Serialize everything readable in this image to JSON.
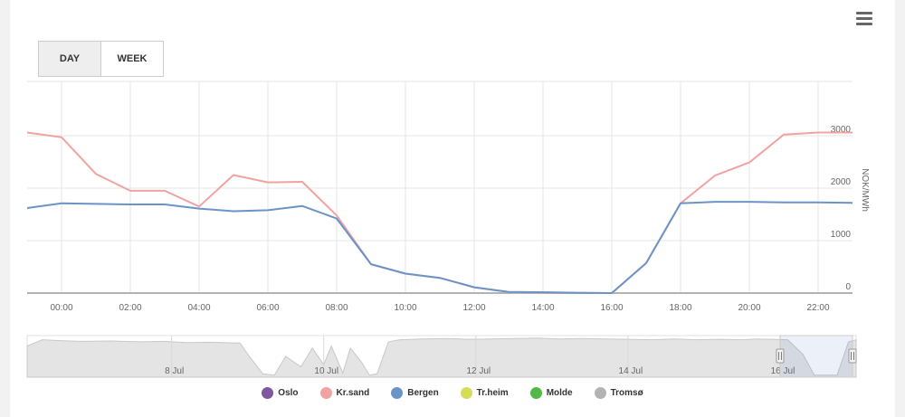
{
  "toolbar": {
    "range_buttons": [
      {
        "label": "DAY",
        "active": true
      },
      {
        "label": "WEEK",
        "active": false
      }
    ],
    "menu_icon": "hamburger-menu-icon"
  },
  "chart_data": {
    "type": "line",
    "title": "",
    "xlabel": "",
    "ylabel": "NOK/MWh",
    "x_ticks": [
      "00:00",
      "02:00",
      "04:00",
      "06:00",
      "08:00",
      "10:00",
      "12:00",
      "14:00",
      "16:00",
      "18:00",
      "20:00",
      "22:00"
    ],
    "x_range_hours": [
      -1,
      23
    ],
    "y_ticks": [
      0,
      1000,
      2000,
      3000
    ],
    "ylim": [
      0,
      3000
    ],
    "grid": true,
    "legend_position": "bottom-center",
    "x_hours": [
      -1,
      0,
      1,
      2,
      3,
      4,
      5,
      6,
      7,
      8,
      9,
      10,
      11,
      12,
      13,
      14,
      15,
      16,
      17,
      18,
      19,
      20,
      21,
      22,
      23
    ],
    "series": [
      {
        "name": "Oslo",
        "color": "#7e57a0",
        "values": [
          0,
          0,
          0,
          0,
          0,
          0,
          0,
          0,
          0,
          0,
          0,
          0,
          0,
          0,
          0,
          0,
          0,
          0,
          0,
          0,
          0,
          0,
          0,
          0,
          0
        ]
      },
      {
        "name": "Kr.sand",
        "color": "#f0a3a1",
        "values": [
          3060,
          2970,
          2270,
          1950,
          1950,
          1650,
          2250,
          2110,
          2120,
          1480,
          550,
          370,
          290,
          110,
          20,
          15,
          5,
          0,
          570,
          1710,
          2240,
          2490,
          3020,
          3060,
          3060
        ]
      },
      {
        "name": "Bergen",
        "color": "#6a94c8",
        "values": [
          1620,
          1710,
          1700,
          1690,
          1690,
          1610,
          1560,
          1580,
          1660,
          1420,
          550,
          370,
          290,
          110,
          20,
          15,
          5,
          0,
          570,
          1710,
          1740,
          1740,
          1730,
          1730,
          1720
        ]
      },
      {
        "name": "Tr.heim",
        "color": "#d4dc58",
        "values": [
          0,
          0,
          0,
          0,
          0,
          0,
          0,
          0,
          0,
          0,
          0,
          0,
          0,
          0,
          0,
          0,
          0,
          0,
          0,
          0,
          0,
          0,
          0,
          0,
          0
        ]
      },
      {
        "name": "Molde",
        "color": "#52b947",
        "values": [
          0,
          0,
          0,
          0,
          0,
          0,
          0,
          0,
          0,
          0,
          0,
          0,
          0,
          0,
          0,
          0,
          0,
          0,
          0,
          0,
          0,
          0,
          0,
          0,
          0
        ]
      },
      {
        "name": "Tromsø",
        "color": "#b3b3b3",
        "values": [
          0,
          0,
          0,
          0,
          0,
          0,
          0,
          0,
          0,
          0,
          0,
          0,
          0,
          0,
          0,
          0,
          0,
          0,
          0,
          0,
          0,
          0,
          0,
          0,
          0
        ]
      }
    ],
    "navigator": {
      "date_labels": [
        "8 Jul",
        "10 Jul",
        "12 Jul",
        "14 Jul",
        "16 Jul"
      ],
      "date_days": [
        8,
        10,
        12,
        14,
        16
      ],
      "day_range": [
        6.1,
        17.0
      ],
      "selected_range_days": [
        16.0,
        17.0
      ],
      "profile_days": [
        6.1,
        6.3,
        6.5,
        6.8,
        7.2,
        7.6,
        7.9,
        8.2,
        8.5,
        8.9,
        9.0,
        9.2,
        9.35,
        9.5,
        9.7,
        9.85,
        10.0,
        10.1,
        10.25,
        10.35,
        10.5,
        10.6,
        10.7,
        10.85,
        11.0,
        11.3,
        11.6,
        11.9,
        12.2,
        12.5,
        12.8,
        13.1,
        13.4,
        13.7,
        14.0,
        14.3,
        14.6,
        14.9,
        15.2,
        15.5,
        15.7,
        15.9,
        16.1,
        16.3,
        16.45,
        16.6,
        16.75,
        16.9,
        17.0
      ],
      "profile_values": [
        0.75,
        0.9,
        0.88,
        0.86,
        0.87,
        0.85,
        0.86,
        0.83,
        0.84,
        0.82,
        0.55,
        0.08,
        0.05,
        0.5,
        0.25,
        0.7,
        0.3,
        0.75,
        0.1,
        0.7,
        0.35,
        0.05,
        0.08,
        0.85,
        0.9,
        0.92,
        0.93,
        0.91,
        0.92,
        0.93,
        0.94,
        0.92,
        0.93,
        0.92,
        0.91,
        0.9,
        0.92,
        0.9,
        0.91,
        0.9,
        0.92,
        0.91,
        0.9,
        0.55,
        0.05,
        0.05,
        0.05,
        0.85,
        0.9
      ]
    }
  }
}
